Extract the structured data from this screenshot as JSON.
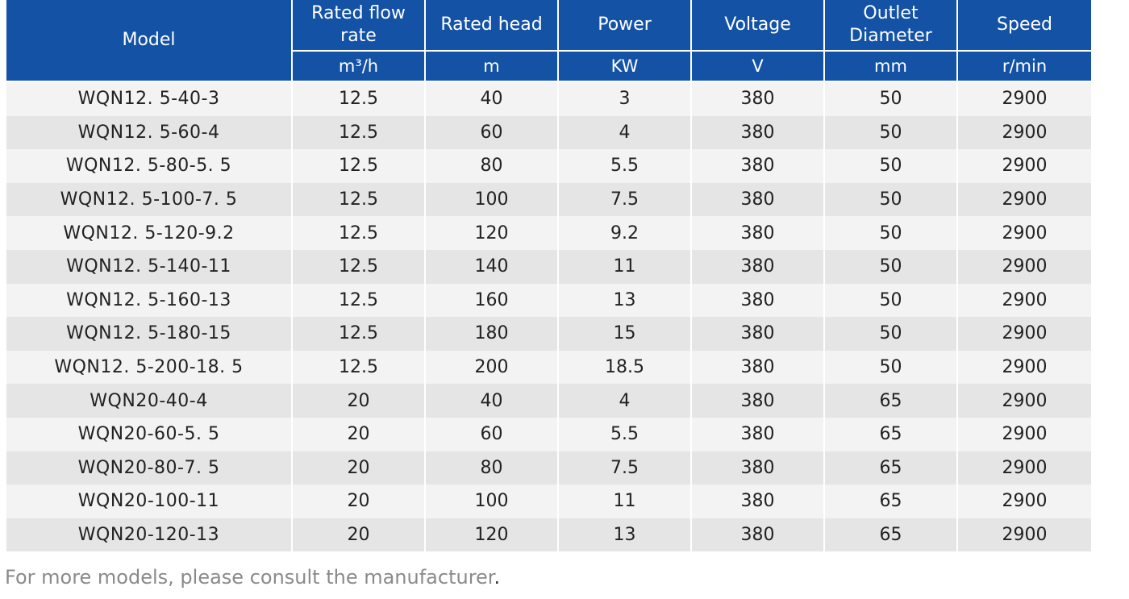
{
  "table": {
    "headers": {
      "model": "Model",
      "flow": "Rated flow rate",
      "head": "Rated head",
      "power": "Power",
      "voltage": "Voltage",
      "outlet": "Outlet Diameter",
      "speed": "Speed"
    },
    "units": {
      "flow": "m³/h",
      "head": "m",
      "power": "KW",
      "voltage": "V",
      "outlet": "mm",
      "speed": "r/min"
    },
    "rows": [
      [
        "WQN12. 5-40-3",
        "12.5",
        "40",
        "3",
        "380",
        "50",
        "2900"
      ],
      [
        "WQN12. 5-60-4",
        "12.5",
        "60",
        "4",
        "380",
        "50",
        "2900"
      ],
      [
        "WQN12. 5-80-5. 5",
        "12.5",
        "80",
        "5.5",
        "380",
        "50",
        "2900"
      ],
      [
        "WQN12. 5-100-7. 5",
        "12.5",
        "100",
        "7.5",
        "380",
        "50",
        "2900"
      ],
      [
        "WQN12. 5-120-9.2",
        "12.5",
        "120",
        "9.2",
        "380",
        "50",
        "2900"
      ],
      [
        "WQN12. 5-140-11",
        "12.5",
        "140",
        "11",
        "380",
        "50",
        "2900"
      ],
      [
        "WQN12. 5-160-13",
        "12.5",
        "160",
        "13",
        "380",
        "50",
        "2900"
      ],
      [
        "WQN12. 5-180-15",
        "12.5",
        "180",
        "15",
        "380",
        "50",
        "2900"
      ],
      [
        "WQN12. 5-200-18. 5",
        "12.5",
        "200",
        "18.5",
        "380",
        "50",
        "2900"
      ],
      [
        "WQN20-40-4",
        "20",
        "40",
        "4",
        "380",
        "65",
        "2900"
      ],
      [
        "WQN20-60-5. 5",
        "20",
        "60",
        "5.5",
        "380",
        "65",
        "2900"
      ],
      [
        "WQN20-80-7. 5",
        "20",
        "80",
        "7.5",
        "380",
        "65",
        "2900"
      ],
      [
        "WQN20-100-11",
        "20",
        "100",
        "11",
        "380",
        "65",
        "2900"
      ],
      [
        "WQN20-120-13",
        "20",
        "120",
        "13",
        "380",
        "65",
        "2900"
      ]
    ]
  },
  "footnote": {
    "text": "For more models, please consult the manufacturer",
    "period": "."
  },
  "colors": {
    "header_bg": "#1452a6",
    "row_light": "#f3f3f3",
    "row_dark": "#e5e5e5"
  }
}
